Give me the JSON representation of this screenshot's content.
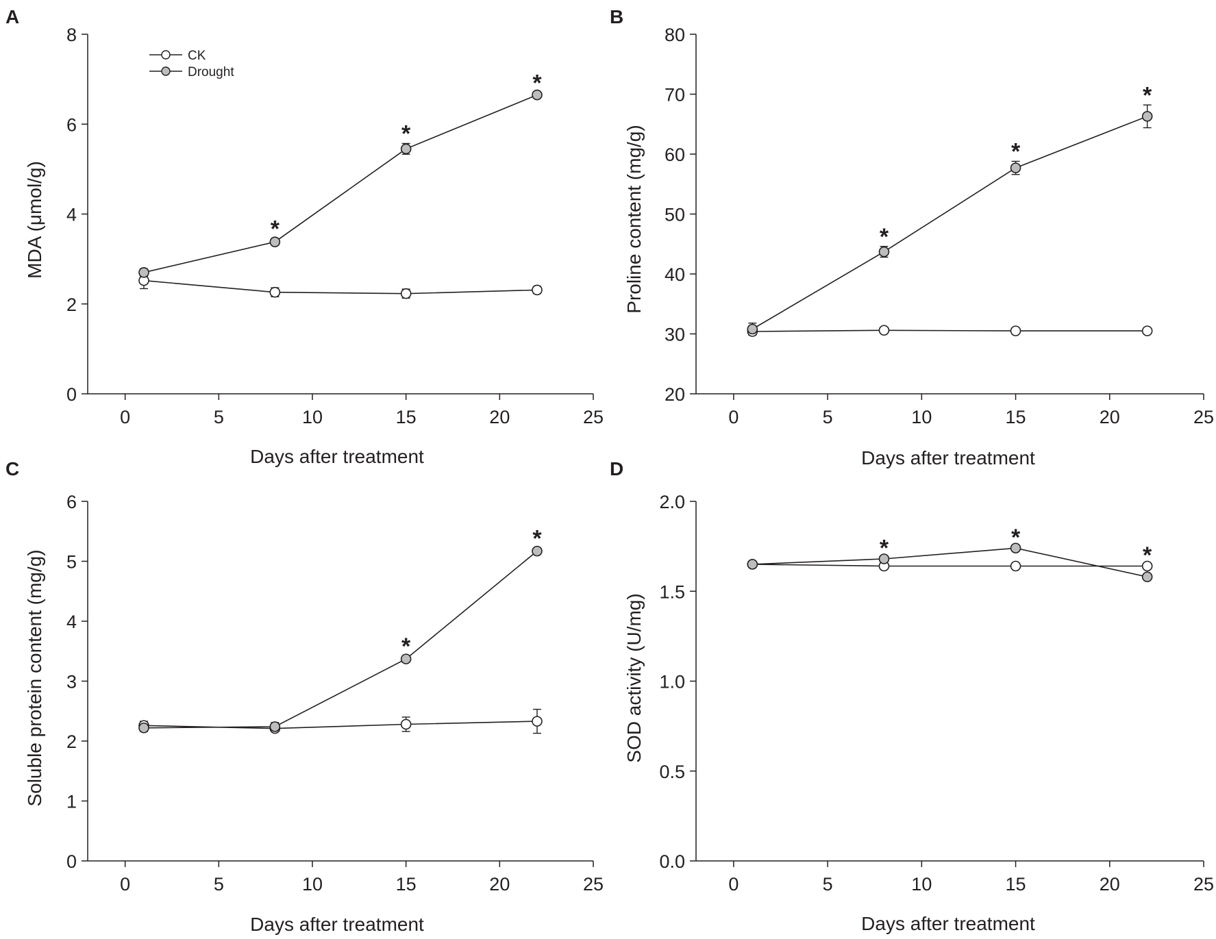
{
  "figure": {
    "background": "#ffffff",
    "line_color": "#231f20"
  },
  "chart_data": [
    {
      "panel": "A",
      "type": "line",
      "xlabel": "Days after treatment",
      "ylabel": "MDA (μmol/g)",
      "xlim": [
        -2,
        25
      ],
      "ylim": [
        0,
        8
      ],
      "xticks": [
        0,
        5,
        10,
        15,
        20,
        25
      ],
      "yticks": [
        0,
        2,
        4,
        6,
        8
      ],
      "ytick_decimals": 0,
      "legend": {
        "position": "top-left",
        "entries": [
          "CK",
          "Drought"
        ]
      },
      "x": [
        1,
        8,
        15,
        22
      ],
      "series": [
        {
          "name": "CK",
          "marker": "open-circle",
          "fill": "#ffffff",
          "values": [
            2.52,
            2.26,
            2.23,
            2.31
          ],
          "errors": [
            0.18,
            0.1,
            0.1,
            0.08
          ]
        },
        {
          "name": "Drought",
          "marker": "filled-circle",
          "fill": "#bdbdbd",
          "values": [
            2.7,
            3.38,
            5.45,
            6.65
          ],
          "errors": [
            0.08,
            0.07,
            0.12,
            0.05
          ]
        }
      ],
      "significance": [
        {
          "x": 8,
          "label": "*"
        },
        {
          "x": 15,
          "label": "*"
        },
        {
          "x": 22,
          "label": "*"
        }
      ]
    },
    {
      "panel": "B",
      "type": "line",
      "xlabel": "Days after treatment",
      "ylabel": "Proline content (mg/g)",
      "xlim": [
        -2,
        25
      ],
      "ylim": [
        20,
        80
      ],
      "xticks": [
        0,
        5,
        10,
        15,
        20,
        25
      ],
      "yticks": [
        20,
        30,
        40,
        50,
        60,
        70,
        80
      ],
      "ytick_decimals": 0,
      "legend": null,
      "x": [
        1,
        8,
        15,
        22
      ],
      "series": [
        {
          "name": "CK",
          "marker": "open-circle",
          "fill": "#ffffff",
          "values": [
            30.4,
            30.6,
            30.5,
            30.5
          ],
          "errors": [
            0.5,
            0.4,
            0.3,
            0.3
          ]
        },
        {
          "name": "Drought",
          "marker": "filled-circle",
          "fill": "#bdbdbd",
          "values": [
            30.8,
            43.7,
            57.7,
            66.3
          ],
          "errors": [
            1.0,
            0.9,
            1.1,
            1.9
          ]
        }
      ],
      "significance": [
        {
          "x": 8,
          "label": "*"
        },
        {
          "x": 15,
          "label": "*"
        },
        {
          "x": 22,
          "label": "*"
        }
      ]
    },
    {
      "panel": "C",
      "type": "line",
      "xlabel": "Days after treatment",
      "ylabel": "Soluble protein content (mg/g)",
      "xlim": [
        -2,
        25
      ],
      "ylim": [
        0,
        6
      ],
      "xticks": [
        0,
        5,
        10,
        15,
        20,
        25
      ],
      "yticks": [
        0,
        1,
        2,
        3,
        4,
        5,
        6
      ],
      "ytick_decimals": 0,
      "legend": null,
      "x": [
        1,
        8,
        15,
        22
      ],
      "series": [
        {
          "name": "CK",
          "marker": "open-circle",
          "fill": "#ffffff",
          "values": [
            2.26,
            2.21,
            2.28,
            2.33
          ],
          "errors": [
            0.07,
            0.05,
            0.12,
            0.2
          ]
        },
        {
          "name": "Drought",
          "marker": "filled-circle",
          "fill": "#bdbdbd",
          "values": [
            2.22,
            2.24,
            3.37,
            5.17
          ],
          "errors": [
            0.06,
            0.07,
            0.05,
            0.05
          ]
        }
      ],
      "significance": [
        {
          "x": 15,
          "label": "*"
        },
        {
          "x": 22,
          "label": "*"
        }
      ]
    },
    {
      "panel": "D",
      "type": "line",
      "xlabel": "Days after treatment",
      "ylabel": "SOD activity (U/mg)",
      "xlim": [
        -2,
        25
      ],
      "ylim": [
        0,
        2
      ],
      "xticks": [
        0,
        5,
        10,
        15,
        20,
        25
      ],
      "yticks": [
        0,
        0.5,
        1,
        1.5,
        2
      ],
      "ytick_decimals": 1,
      "legend": null,
      "x": [
        1,
        8,
        15,
        22
      ],
      "series": [
        {
          "name": "CK",
          "marker": "open-circle",
          "fill": "#ffffff",
          "values": [
            1.65,
            1.64,
            1.64,
            1.64
          ],
          "errors": [
            0.005,
            0.005,
            0.005,
            0.005
          ]
        },
        {
          "name": "Drought",
          "marker": "filled-circle",
          "fill": "#bdbdbd",
          "values": [
            1.65,
            1.68,
            1.74,
            1.58
          ],
          "errors": [
            0.005,
            0.005,
            0.005,
            0.005
          ]
        }
      ],
      "significance": [
        {
          "x": 8,
          "label": "*"
        },
        {
          "x": 15,
          "label": "*"
        },
        {
          "x": 22,
          "label": "*"
        }
      ]
    }
  ]
}
